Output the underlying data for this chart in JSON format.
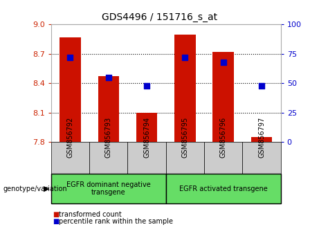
{
  "title": "GDS4496 / 151716_s_at",
  "samples": [
    "GSM856792",
    "GSM856793",
    "GSM856794",
    "GSM856795",
    "GSM856796",
    "GSM856797"
  ],
  "red_values": [
    8.87,
    8.47,
    8.1,
    8.9,
    8.72,
    7.85
  ],
  "blue_pct": [
    72,
    55,
    48,
    72,
    68,
    48
  ],
  "y_min": 7.8,
  "y_max": 9.0,
  "y_ticks_left": [
    7.8,
    8.1,
    8.4,
    8.7,
    9.0
  ],
  "y_ticks_right": [
    0,
    25,
    50,
    75,
    100
  ],
  "group1_label": "EGFR dominant negative\ntransgene",
  "group2_label": "EGFR activated transgene",
  "group_color": "#66DD66",
  "group_divider": 2.5,
  "bar_color": "#CC1100",
  "dot_color": "#0000CC",
  "bar_width": 0.55,
  "dot_size": 35,
  "bg_color": "#ffffff",
  "tick_label_color_left": "#CC2200",
  "tick_label_color_right": "#0000CC",
  "legend_red": "transformed count",
  "legend_blue": "percentile rank within the sample",
  "genotype_label": "genotype/variation",
  "xtick_bg": "#CCCCCC"
}
